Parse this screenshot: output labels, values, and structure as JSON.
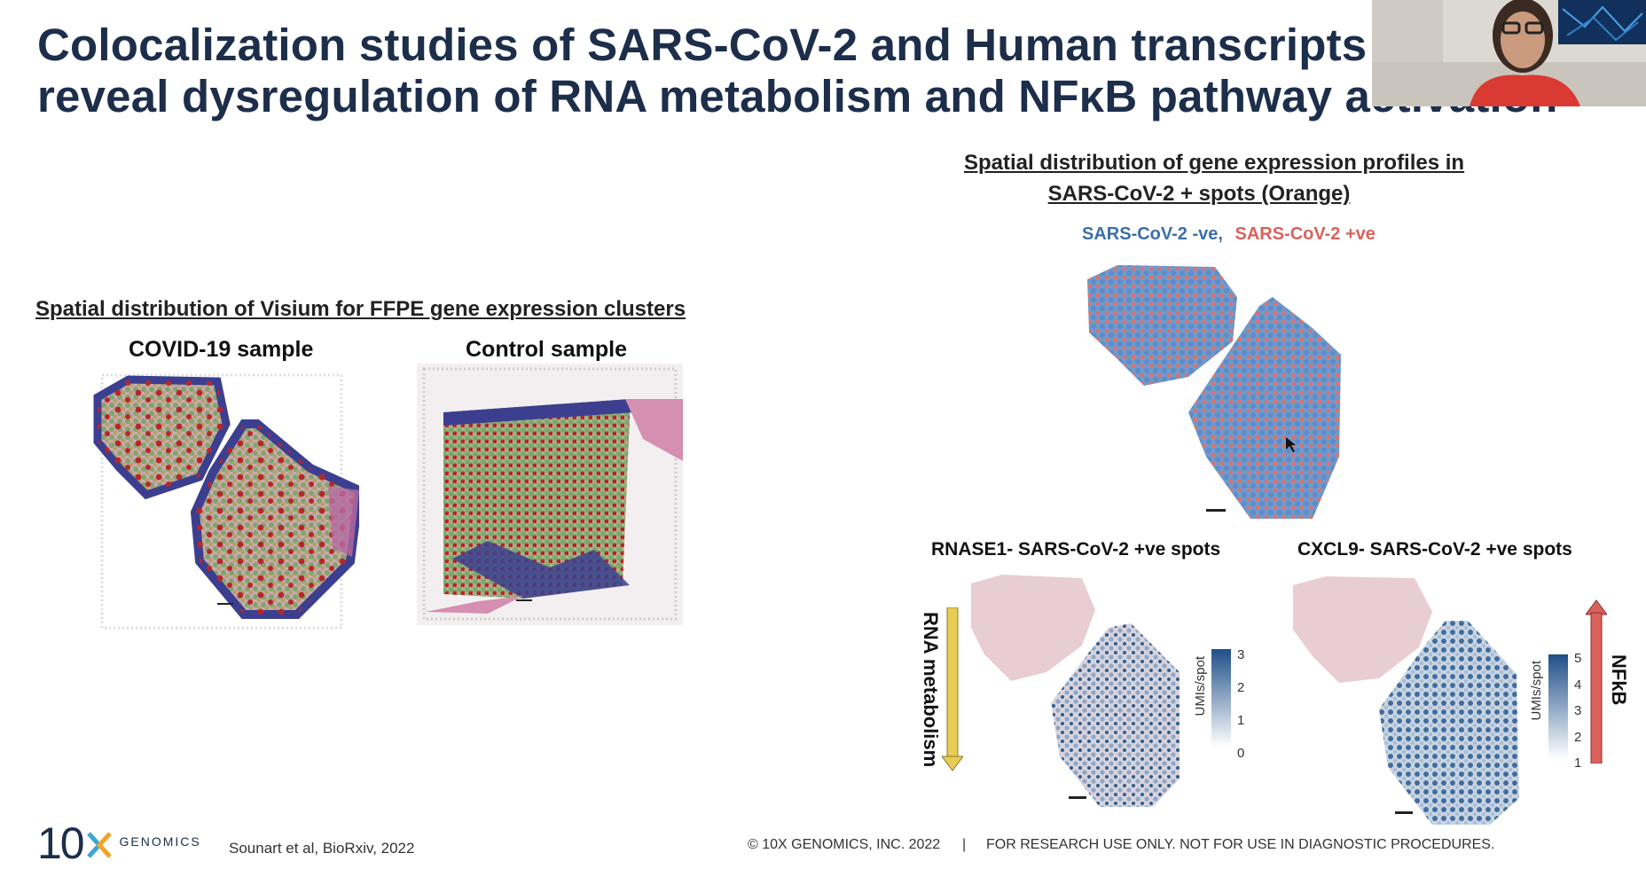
{
  "slide": {
    "title_line1": "Colocalization studies of SARS-CoV-2 and Human transcripts",
    "title_line2": "reveal dysregulation of RNA metabolism and NFκB pathway activation",
    "left_heading": "Spatial distribution of Visium for FFPE gene expression clusters",
    "covid_label": "COVID-19 sample",
    "control_label": "Control sample",
    "right_heading_line1": "Spatial distribution of gene expression profiles in",
    "right_heading_line2": "SARS-CoV-2 + spots (Orange)",
    "legend_neg": "SARS-CoV-2 -ve,",
    "legend_pos": "SARS-CoV-2 +ve",
    "rnase1_title": "RNASE1- SARS-CoV-2 +ve spots",
    "cxcl9_title": "CXCL9- SARS-CoV-2 +ve spots",
    "rna_metabolism_label": "RNA metabolism",
    "nfkb_label": "NFkB",
    "colorbar_label": "UMIs/spot",
    "rnase1_ticks": [
      "3",
      "2",
      "1",
      "0"
    ],
    "cxcl9_ticks": [
      "5",
      "4",
      "3",
      "2",
      "1"
    ]
  },
  "footer": {
    "logo_number": "10",
    "logo_word": "GENOMICS",
    "citation": "Sounart et al, BioRxiv, 2022",
    "copyright": "© 10X GENOMICS, INC. 2022",
    "separator": "|",
    "disclaimer": "FOR RESEARCH USE ONLY. NOT FOR USE IN DIAGNOSTIC PROCEDURES."
  },
  "colors": {
    "title": "#1c2e4a",
    "negative_blue": "#3b6ea8",
    "positive_red": "#d9625c",
    "cluster_green": "#7fa66a",
    "cluster_red": "#b8262a",
    "cluster_navy": "#3c3f8f",
    "tissue_pink": "#d58fb0",
    "arrow_yellow": "#e8cc55",
    "arrow_red": "#d9625c"
  },
  "webcam": {
    "icon": "video-participant-icon"
  }
}
